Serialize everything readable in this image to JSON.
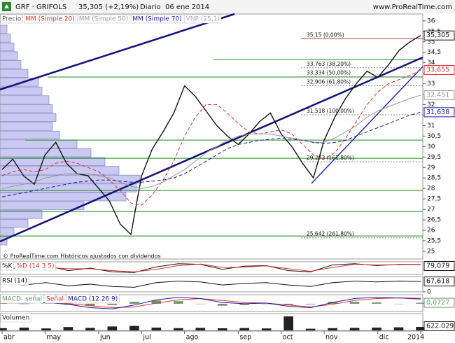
{
  "chart_data": [
    {
      "type": "line",
      "title": "GRF · GRIFOLS",
      "quote": "35,305 (+2,19%)",
      "period": "Diario  06 ene 2014",
      "source": "www.ProRealTime.com",
      "footnote": "© ProRealTime.com  Históricos ajustados con dividendos",
      "volume_profile": {
        "name": "VNP (25,1)"
      },
      "categories": [
        "abr",
        null,
        null,
        null,
        "may",
        null,
        null,
        null,
        null,
        "jun",
        null,
        null,
        null,
        "jul",
        null,
        null,
        null,
        "ago",
        null,
        null,
        null,
        null,
        "sep",
        null,
        null,
        null,
        "oct",
        null,
        null,
        null,
        "nov",
        null,
        null,
        null,
        null,
        "dic",
        null,
        null,
        null,
        "2014"
      ],
      "series": [
        {
          "name": "Precio",
          "color": "#111111",
          "dash": false,
          "last_label": "35,305",
          "values": [
            28.9,
            29.4,
            28.6,
            28.2,
            29.6,
            30.2,
            29.2,
            28.7,
            28.6,
            28.0,
            27.4,
            26.3,
            25.8,
            28.6,
            29.9,
            30.7,
            31.6,
            32.9,
            32.4,
            31.7,
            31.0,
            30.5,
            30.1,
            30.6,
            31.2,
            31.6,
            30.6,
            30.0,
            29.2,
            28.5,
            30.3,
            31.4,
            32.3,
            33.0,
            33.6,
            33.3,
            33.9,
            34.6,
            35.0,
            35.305
          ]
        },
        {
          "name": "MM (Simple 20)",
          "color": "#e03030",
          "dash": true,
          "last_label": "33,655",
          "values": [
            28.6,
            28.8,
            28.9,
            28.8,
            28.9,
            29.2,
            29.3,
            29.2,
            29.0,
            28.8,
            28.4,
            27.9,
            27.3,
            27.2,
            27.7,
            28.4,
            29.3,
            30.5,
            31.4,
            32.0,
            32.0,
            31.6,
            31.1,
            30.7,
            30.6,
            30.7,
            30.8,
            30.6,
            30.1,
            29.6,
            29.4,
            29.7,
            30.4,
            31.2,
            32.0,
            32.6,
            33.0,
            33.2,
            33.4,
            33.655
          ]
        },
        {
          "name": "MM (Simple 50)",
          "color": "#9a9a9a",
          "dash": false,
          "last_label": "32,451",
          "values": [
            28.0,
            28.1,
            28.2,
            28.3,
            28.5,
            28.6,
            28.7,
            28.7,
            28.7,
            28.6,
            28.5,
            28.3,
            28.1,
            28.0,
            28.1,
            28.3,
            28.6,
            28.9,
            29.3,
            29.7,
            30.0,
            30.3,
            30.5,
            30.6,
            30.6,
            30.6,
            30.5,
            30.4,
            30.3,
            30.2,
            30.2,
            30.4,
            30.7,
            31.0,
            31.4,
            31.7,
            31.9,
            32.1,
            32.3,
            32.451
          ]
        },
        {
          "name": "MM (Simple 70)",
          "color": "#1a1aa0",
          "dash": true,
          "last_label": "31,638",
          "values": [
            27.6,
            27.7,
            27.8,
            27.9,
            28.0,
            28.1,
            28.2,
            28.3,
            28.35,
            28.4,
            28.4,
            28.35,
            28.3,
            28.3,
            28.35,
            28.4,
            28.5,
            28.7,
            29.0,
            29.3,
            29.6,
            29.9,
            30.1,
            30.2,
            30.3,
            30.35,
            30.4,
            30.35,
            30.3,
            30.2,
            30.15,
            30.2,
            30.3,
            30.5,
            30.7,
            30.9,
            31.1,
            31.3,
            31.5,
            31.638
          ]
        }
      ],
      "fib_levels": [
        {
          "value": 35.15,
          "label": "35,15 (0,00%)"
        },
        {
          "value": 33.763,
          "label": "33,763 (38,20%)"
        },
        {
          "value": 33.334,
          "label": "33,334 (50,00%)"
        },
        {
          "value": 32.906,
          "label": "32,906 (61,80%)"
        },
        {
          "value": 31.518,
          "label": "31,518 (100,00%)"
        },
        {
          "value": 29.273,
          "label": "29,273 (161,80%)"
        },
        {
          "value": 25.642,
          "label": "25,642 (261,80%)"
        }
      ],
      "hlines": [
        34.16,
        33.32,
        30.31,
        29.44,
        27.9,
        26.9,
        25.73
      ],
      "ylim": [
        24.63,
        36.33
      ],
      "yticks": [
        25,
        {
          "value": 25.5,
          "label": "25,5"
        },
        26,
        {
          "value": 26.5,
          "label": "26,5"
        },
        27,
        {
          "value": 27.5,
          "label": "27,5"
        },
        28,
        {
          "value": 28.5,
          "label": "28,5"
        },
        29,
        {
          "value": 29.5,
          "label": "29,5"
        },
        30,
        {
          "value": 30.5,
          "label": "30,5"
        },
        31,
        {
          "value": 31.5,
          "label": "31,5"
        },
        32,
        {
          "value": 32.5,
          "label": "32,5"
        },
        33,
        {
          "value": 33.5,
          "label": "33,5"
        },
        34,
        {
          "value": 34.5,
          "label": "34,5"
        },
        35,
        {
          "value": 35.5,
          "label": "35,5"
        },
        36
      ]
    },
    {
      "type": "line",
      "ylim": [
        0,
        100
      ],
      "series": [
        {
          "name": "%K",
          "color": "#111111",
          "dash": false,
          "last_label": "79,079",
          "values": [
            60,
            40,
            70,
            30,
            50,
            20,
            15,
            60,
            85,
            80,
            40,
            65,
            70,
            30,
            20,
            75,
            85,
            70,
            80,
            79.079
          ]
        },
        {
          "name": "%D (14 3 5)",
          "color": "#e03030",
          "dash": false,
          "values": [
            55,
            45,
            55,
            45,
            45,
            30,
            20,
            40,
            70,
            82,
            55,
            58,
            68,
            45,
            25,
            55,
            80,
            75,
            78,
            78
          ]
        }
      ]
    },
    {
      "type": "line",
      "ylim": [
        0,
        100
      ],
      "yticks": [
        0
      ],
      "series": [
        {
          "name": "RSI (14)",
          "color": "#111111",
          "dash": false,
          "last_label": "67,618",
          "values": [
            55,
            45,
            60,
            40,
            50,
            35,
            30,
            60,
            70,
            65,
            45,
            55,
            60,
            45,
            35,
            60,
            70,
            65,
            70,
            67.618
          ]
        }
      ]
    },
    {
      "type": "line",
      "ylim": [
        -0.6,
        0.7
      ],
      "series": [
        {
          "name": "MACD- señal",
          "color": "#6a9a6a",
          "kind": "bar",
          "last_label": "0,0727",
          "values": [
            0.05,
            -0.02,
            0.02,
            -0.07,
            -0.15,
            -0.1,
            0.15,
            0.25,
            0.2,
            0,
            -0.15,
            -0.1,
            0,
            -0.1,
            -0.05,
            0.15,
            0.15,
            0.1,
            0,
            0.0727
          ]
        },
        {
          "name": "Señal",
          "color": "#e03030",
          "dash": false,
          "values": [
            0.05,
            0.07,
            0.08,
            0.02,
            -0.15,
            -0.3,
            -0.25,
            0.05,
            0.3,
            0.4,
            0.25,
            0.1,
            0.05,
            -0.1,
            -0.25,
            -0.05,
            0.25,
            0.4,
            0.45,
            0.35
          ]
        },
        {
          "name": "MACD (12 26 9)",
          "color": "#1a1aa0",
          "dash": false,
          "values": [
            0.1,
            0.05,
            0.1,
            -0.05,
            -0.3,
            -0.4,
            -0.1,
            0.3,
            0.5,
            0.4,
            0.1,
            0,
            0.05,
            -0.2,
            -0.3,
            0.1,
            0.4,
            0.5,
            0.45,
            0.42
          ]
        }
      ]
    },
    {
      "type": "bar",
      "ylim": [
        0,
        3000000
      ],
      "series": [
        {
          "name": "Volumen",
          "color": "#222222",
          "last_label": "622.029",
          "values": [
            400000,
            500000,
            350000,
            600000,
            450000,
            700000,
            800000,
            500000,
            400000,
            450000,
            380000,
            420000,
            350000,
            2500000,
            300000,
            400000,
            450000,
            500000,
            550000,
            622029
          ]
        }
      ]
    }
  ]
}
